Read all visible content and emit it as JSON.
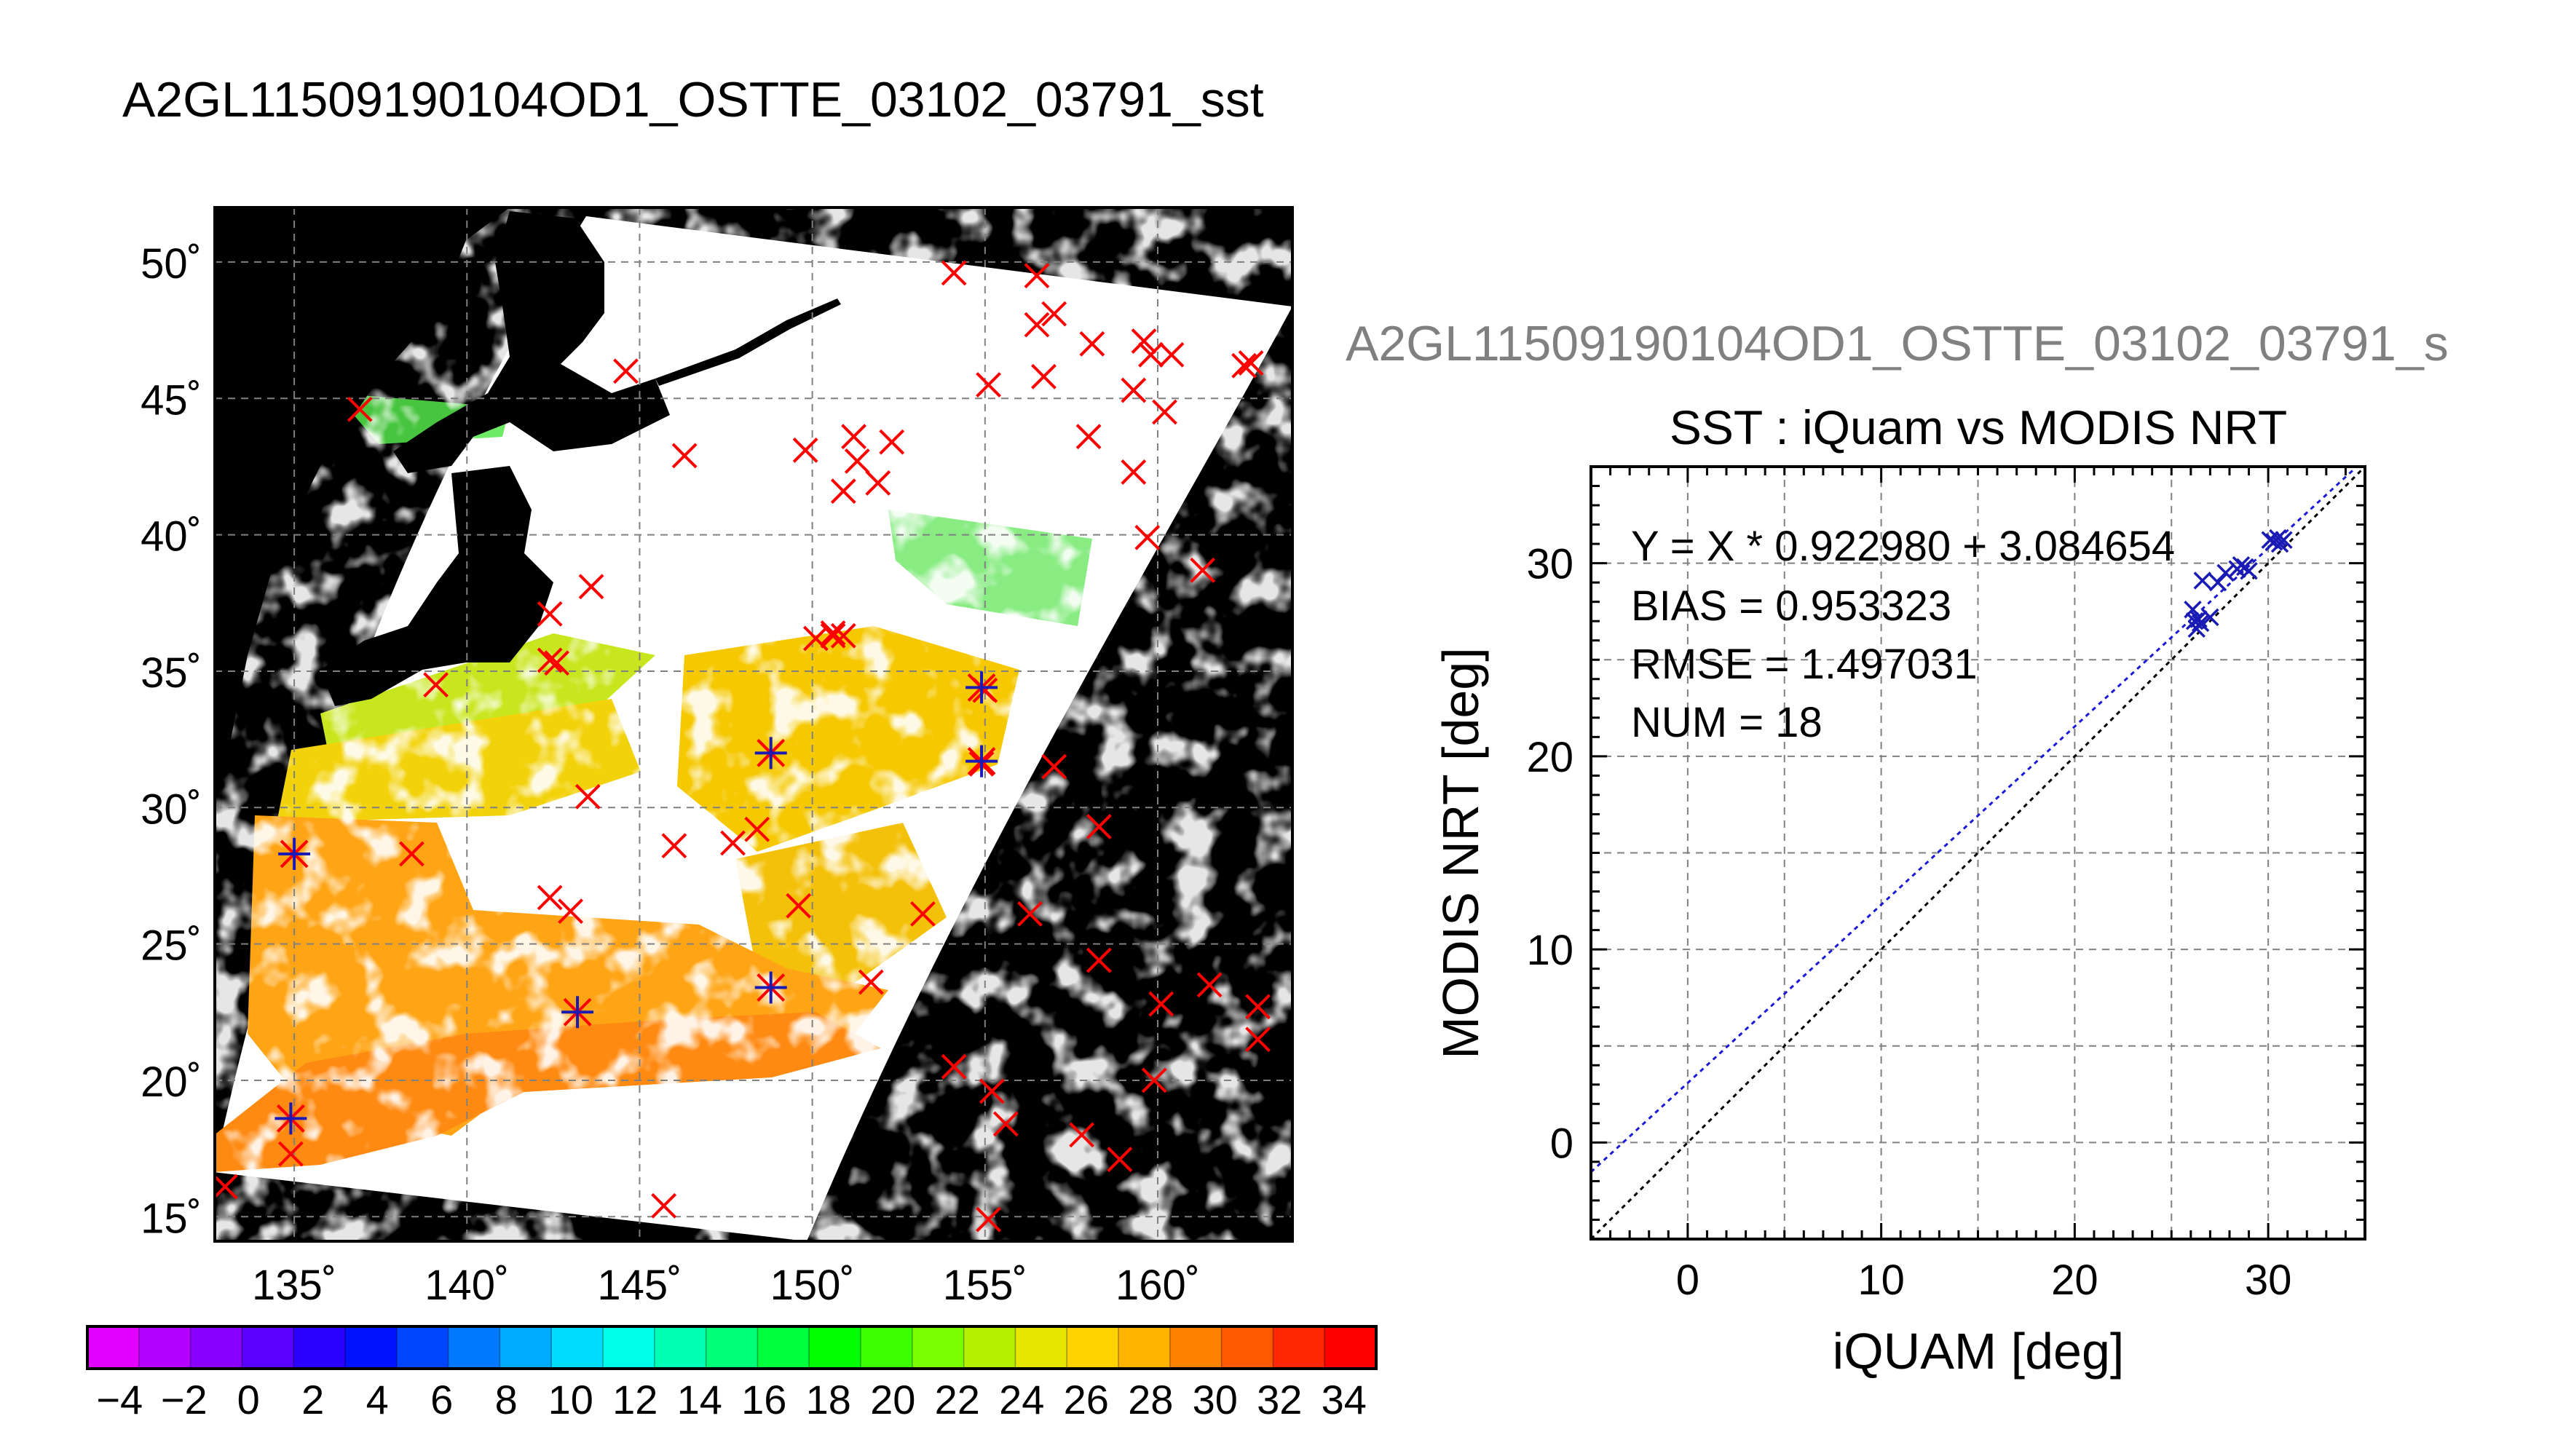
{
  "page_title": "A2GL11509190104OD1_OSTTE_03102_03791_sst",
  "colors": {
    "land": "#000000",
    "no_data": "#ffffff",
    "buoy_marker": "#ff0000",
    "match_marker": "#1a1ab4",
    "fit_line": "#1a1ad6",
    "identity_line": "#000000",
    "secondary_title": "#808080"
  },
  "map": {
    "lon_ticks": [
      "135˚",
      "140˚",
      "145˚",
      "150˚",
      "155˚",
      "160˚"
    ],
    "lat_ticks": [
      "15˚",
      "20˚",
      "25˚",
      "30˚",
      "35˚",
      "40˚",
      "45˚",
      "50˚"
    ],
    "lon_values": [
      135,
      140,
      145,
      150,
      155,
      160
    ],
    "lat_values": [
      15,
      20,
      25,
      30,
      35,
      40,
      45,
      50
    ],
    "lon_range": [
      132.7,
      163.9
    ],
    "lat_range": [
      14.1,
      52.0
    ],
    "in_situ_points": [
      [
        136.9,
        44.6
      ],
      [
        144.6,
        46.0
      ],
      [
        146.3,
        42.9
      ],
      [
        149.8,
        43.1
      ],
      [
        152.3,
        43.4
      ],
      [
        151.3,
        42.7
      ],
      [
        151.2,
        43.6
      ],
      [
        150.9,
        41.6
      ],
      [
        151.9,
        41.9
      ],
      [
        154.1,
        49.6
      ],
      [
        156.5,
        49.5
      ],
      [
        156.5,
        47.7
      ],
      [
        157.0,
        48.1
      ],
      [
        158.1,
        47.0
      ],
      [
        159.6,
        47.1
      ],
      [
        159.3,
        45.3
      ],
      [
        159.8,
        46.6
      ],
      [
        160.2,
        44.5
      ],
      [
        160.4,
        46.6
      ],
      [
        162.5,
        46.2
      ],
      [
        162.7,
        46.3
      ],
      [
        156.7,
        45.8
      ],
      [
        155.1,
        45.5
      ],
      [
        158.0,
        43.6
      ],
      [
        159.3,
        42.3
      ],
      [
        159.7,
        39.9
      ],
      [
        161.3,
        38.7
      ],
      [
        143.6,
        38.1
      ],
      [
        142.4,
        37.1
      ],
      [
        142.6,
        35.3
      ],
      [
        142.4,
        35.4
      ],
      [
        139.1,
        34.5
      ],
      [
        150.1,
        36.2
      ],
      [
        150.6,
        36.3
      ],
      [
        150.9,
        36.3
      ],
      [
        150.6,
        36.4
      ],
      [
        155.0,
        34.3
      ],
      [
        148.8,
        32.0
      ],
      [
        154.9,
        31.6
      ],
      [
        157.0,
        31.5
      ],
      [
        143.5,
        30.4
      ],
      [
        146.0,
        28.6
      ],
      [
        147.7,
        28.7
      ],
      [
        148.4,
        29.2
      ],
      [
        158.3,
        29.3
      ],
      [
        138.4,
        28.3
      ],
      [
        142.4,
        26.7
      ],
      [
        143.0,
        26.2
      ],
      [
        149.6,
        26.4
      ],
      [
        153.2,
        26.1
      ],
      [
        156.3,
        26.1
      ],
      [
        158.3,
        24.4
      ],
      [
        151.7,
        23.6
      ],
      [
        160.1,
        22.8
      ],
      [
        161.5,
        23.5
      ],
      [
        162.9,
        22.7
      ],
      [
        162.9,
        21.5
      ],
      [
        154.1,
        20.5
      ],
      [
        155.2,
        19.6
      ],
      [
        159.9,
        20.0
      ],
      [
        155.6,
        18.4
      ],
      [
        157.8,
        18.0
      ],
      [
        158.9,
        17.1
      ],
      [
        145.7,
        15.4
      ],
      [
        155.1,
        14.9
      ],
      [
        133.0,
        16.1
      ],
      [
        134.9,
        17.3
      ]
    ],
    "matchup_points": [
      [
        135.0,
        28.3
      ],
      [
        134.9,
        18.6
      ],
      [
        143.2,
        22.5
      ],
      [
        148.8,
        23.4
      ],
      [
        148.8,
        32.0
      ],
      [
        154.9,
        34.4
      ],
      [
        154.9,
        31.7
      ]
    ]
  },
  "colorbar": {
    "tick_labels": [
      "−4",
      "−2",
      "0",
      "2",
      "4",
      "6",
      "8",
      "10",
      "12",
      "14",
      "16",
      "18",
      "20",
      "22",
      "24",
      "26",
      "28",
      "30",
      "32",
      "34"
    ],
    "range": [
      -5,
      35
    ],
    "colors": [
      "#e100ff",
      "#b300ff",
      "#8a00ff",
      "#5a00ff",
      "#2a00ff",
      "#0012ff",
      "#0045ff",
      "#0078ff",
      "#00abff",
      "#00dcff",
      "#00ffea",
      "#00ffb4",
      "#00ff78",
      "#00ff3c",
      "#00ff00",
      "#3cff00",
      "#78ff00",
      "#b4f000",
      "#e6e600",
      "#ffd200",
      "#ffb400",
      "#ff8200",
      "#ff5a00",
      "#ff2800",
      "#ff0000"
    ]
  },
  "scatter": {
    "secondary_title": "A2GL11509190104OD1_OSTTE_03102_03791_s",
    "title": "SST : iQuam vs MODIS NRT",
    "xlabel": "iQUAM [deg]",
    "ylabel": "MODIS NRT [deg]",
    "x_ticks": [
      "0",
      "10",
      "20",
      "30"
    ],
    "y_ticks": [
      "0",
      "10",
      "20",
      "30"
    ],
    "stats": {
      "equation": "Y = X * 0.922980 + 3.084654",
      "bias": "BIAS = 0.953323",
      "rmse": "RMSE = 1.497031",
      "num": "NUM = 18"
    }
  },
  "chart_data": [
    {
      "type": "scatter",
      "title": "A2GL11509190104OD1_OSTTE_03102_03791_sst",
      "xlabel": "",
      "ylabel": "",
      "xlim": [
        132.7,
        163.9
      ],
      "ylim": [
        14.1,
        52.0
      ],
      "x_tick_values": [
        135,
        140,
        145,
        150,
        155,
        160
      ],
      "y_tick_values": [
        15,
        20,
        25,
        30,
        35,
        40,
        45,
        50
      ],
      "colorbar_range": [
        -5,
        35
      ],
      "grid": true
    },
    {
      "type": "scatter",
      "title": "SST : iQuam vs MODIS NRT",
      "xlabel": "iQUAM [deg]",
      "ylabel": "MODIS NRT [deg]",
      "xlim": [
        -5,
        35
      ],
      "ylim": [
        -5,
        35
      ],
      "grid": true,
      "series": [
        {
          "name": "",
          "x": [
            26.1,
            26.2,
            26.3,
            26.4,
            26.5,
            26.6,
            27.0,
            27.4,
            27.8,
            28.4,
            28.6,
            28.8,
            29.0,
            30.1,
            30.3,
            30.5,
            30.6,
            30.8
          ],
          "y": [
            27.6,
            27.0,
            26.6,
            27.1,
            26.9,
            29.1,
            27.2,
            29.0,
            29.5,
            29.7,
            29.9,
            29.8,
            29.6,
            31.2,
            31.1,
            31.3,
            31.0,
            31.2
          ]
        }
      ],
      "fit_line": {
        "slope": 0.92298,
        "intercept": 3.084654
      },
      "identity_line": {
        "slope": 1,
        "intercept": 0
      }
    }
  ]
}
